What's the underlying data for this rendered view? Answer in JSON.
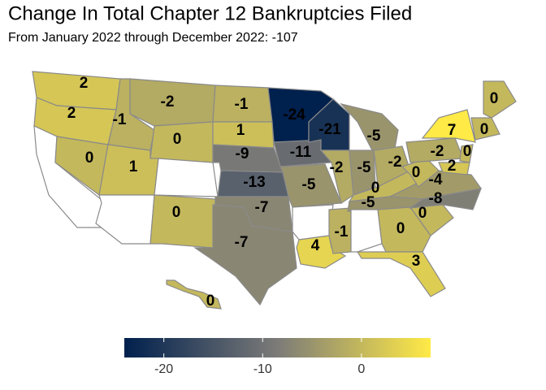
{
  "chart_data": {
    "type": "choropleth",
    "title": "Change In Total Chapter 12 Bankruptcies Filed",
    "subtitle": "From January 2022 through December 2022: -107",
    "values": [
      2,
      2,
      null,
      0,
      -1,
      -2,
      0,
      1,
      null,
      null,
      0,
      -1,
      1,
      -9,
      -13,
      -7,
      -7,
      -24,
      -11,
      -5,
      null,
      4,
      -1,
      -21,
      -2,
      -5,
      -5,
      -2,
      0,
      -5,
      null,
      0,
      3,
      0,
      -4,
      -8,
      0,
      -2,
      7,
      0,
      2,
      0,
      0,
      0
    ],
    "colorbar": {
      "lim": [
        -24,
        7
      ],
      "ticks": [
        -20,
        -10,
        0
      ],
      "colors": [
        "#00204d",
        "#7c7b78",
        "#ffea46"
      ]
    }
  }
}
